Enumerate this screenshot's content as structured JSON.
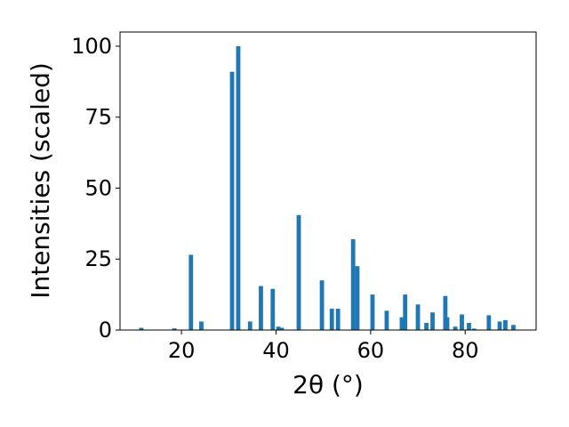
{
  "chart_data": {
    "type": "bar",
    "xlabel": "2θ (°)",
    "ylabel": "Intensities (scaled)",
    "xlim": [
      7,
      95
    ],
    "ylim": [
      0,
      105
    ],
    "xticks": [
      20,
      40,
      60,
      80
    ],
    "yticks": [
      0,
      25,
      50,
      75,
      100
    ],
    "grid": false,
    "bar_color": "#1f77b4",
    "x": [
      11.5,
      18.5,
      22.0,
      24.2,
      30.7,
      32.0,
      34.5,
      36.8,
      39.3,
      40.5,
      41.2,
      44.8,
      49.7,
      51.8,
      53.1,
      56.3,
      57.2,
      60.4,
      63.4,
      66.6,
      67.3,
      70.0,
      71.8,
      73.1,
      75.8,
      76.2,
      77.9,
      79.3,
      80.8,
      81.9,
      85.0,
      87.3,
      88.5,
      90.2
    ],
    "values": [
      0.8,
      0.6,
      26.5,
      3.0,
      91.0,
      100.0,
      3.0,
      15.5,
      14.5,
      1.2,
      0.8,
      40.5,
      17.5,
      7.5,
      7.5,
      32.0,
      22.5,
      12.5,
      6.8,
      4.5,
      12.5,
      9.0,
      2.5,
      6.2,
      12.0,
      4.5,
      1.2,
      5.5,
      2.5,
      0.5,
      5.2,
      3.0,
      3.5,
      1.8
    ]
  }
}
